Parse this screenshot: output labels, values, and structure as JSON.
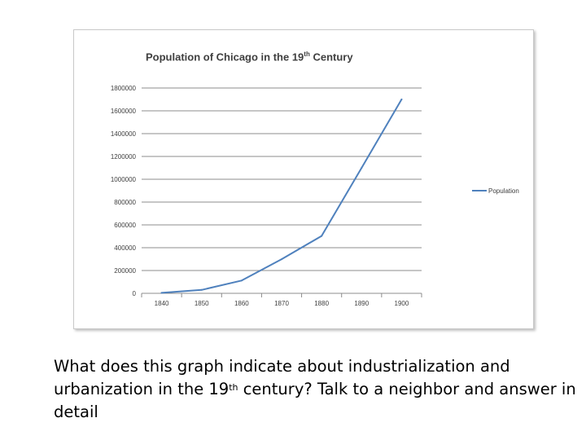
{
  "chart_data": {
    "type": "line",
    "title": {
      "before": "Population of Chicago in the 19",
      "sup": "th",
      "after": " Century"
    },
    "xlabel": "",
    "ylabel": "",
    "x": [
      1840,
      1850,
      1860,
      1870,
      1880,
      1890,
      1900
    ],
    "x_tick_labels": [
      "1840",
      "1850",
      "1860",
      "1870",
      "1880",
      "1890",
      "1900"
    ],
    "y_ticks": [
      0,
      200000,
      400000,
      600000,
      800000,
      1000000,
      1200000,
      1400000,
      1600000,
      1800000
    ],
    "y_tick_labels": [
      "0",
      "200000",
      "400000",
      "600000",
      "800000",
      "1000000",
      "1200000",
      "1400000",
      "1600000",
      "1800000"
    ],
    "ylim": [
      0,
      1800000
    ],
    "grid": true,
    "legend_position": "right",
    "series": [
      {
        "name": "Population",
        "color": "#4f81bd",
        "values": [
          4500,
          30000,
          112000,
          299000,
          503000,
          1100000,
          1700000
        ]
      }
    ]
  },
  "question": {
    "part1": "What does this graph indicate about industrialization and urbanization in the 19",
    "sup": "th",
    "part2": " century? Talk to a neighbor and answer in detail"
  }
}
